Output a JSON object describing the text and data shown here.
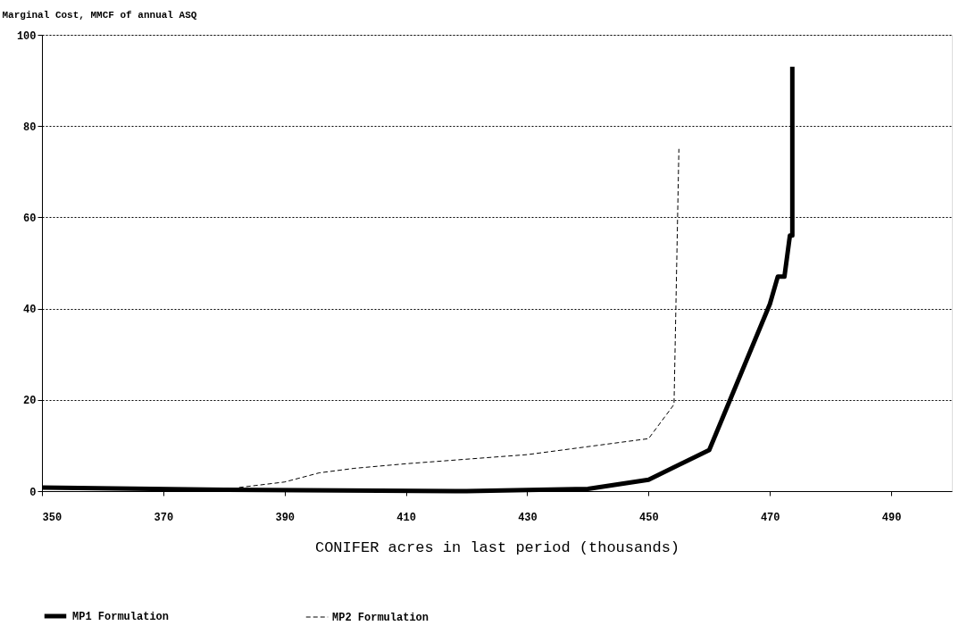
{
  "chart_data": {
    "type": "line",
    "ylabel": "Marginal Cost, MMCF of annual ASQ",
    "xlabel": "CONIFER acres in last period (thousands)",
    "xlim": [
      350,
      500
    ],
    "xticks": [
      350,
      370,
      390,
      410,
      430,
      450,
      470,
      490
    ],
    "ylim": [
      0,
      100
    ],
    "yticks": [
      0,
      20,
      40,
      60,
      80,
      100
    ],
    "grid": "y",
    "legend": "bottom",
    "marker": "none",
    "series": [
      {
        "name": "MP1 Formulation",
        "color": "#000000",
        "line_style": "solid",
        "x": [
          350,
          380,
          420,
          440,
          450,
          460,
          470,
          471.3,
          472.4,
          473.3,
          473.7,
          473.7
        ],
        "values": [
          0.8,
          0.3,
          0,
          0.5,
          2.5,
          9,
          41,
          47,
          47,
          56,
          56,
          93
        ]
      },
      {
        "name": "MP2 Formulation",
        "color": "#000000",
        "line_style": "dashed",
        "x": [
          382.5,
          390,
          395.7,
          401.5,
          410,
          430,
          450,
          454.2,
          455
        ],
        "values": [
          0.8,
          2,
          4,
          5,
          6,
          8,
          11.5,
          19,
          75
        ]
      }
    ]
  }
}
